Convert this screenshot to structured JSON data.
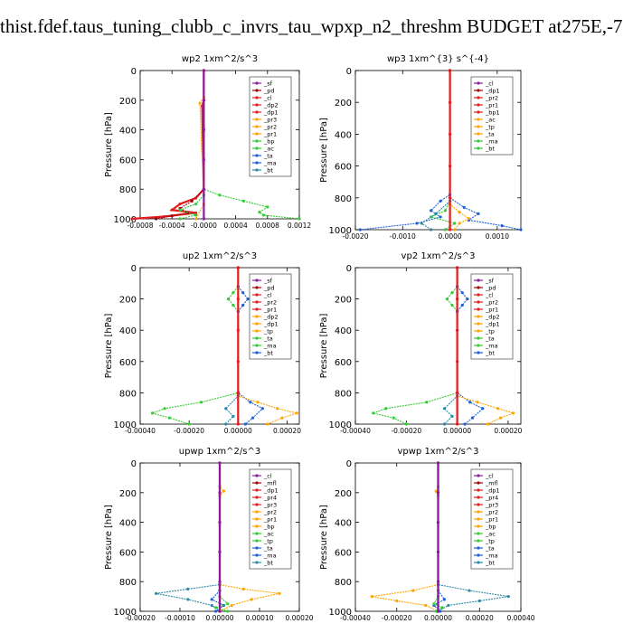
{
  "page": {
    "title": "thist.fdef.taus_tuning_clubb_c_invrs_tau_wpxp_n2_threshm  BUDGET at275E,-7"
  },
  "colors": {
    "red": "#e41a1c",
    "orange": "#ffa500",
    "green": "#33cc33",
    "blue": "#1f5fd6",
    "cyan": "#00cccc",
    "purple": "#8b1c9c",
    "darkred": "#a00000",
    "teal": "#2a8aa8"
  },
  "chart_data": [
    {
      "type": "line",
      "title": "wp2   1xm^2/s^3",
      "ylabel": "Pressure  [hPa]",
      "xlim": [
        -0.0008,
        0.0012
      ],
      "ylim": [
        1000,
        0
      ],
      "x_ticks": [
        "-0.0008",
        "-0.0004",
        "-0.0000",
        "0.0004",
        "0.0008",
        "0.0012"
      ],
      "y_ticks": [
        "0",
        "200",
        "400",
        "600",
        "800",
        "1000"
      ],
      "legend": [
        "_sf",
        "_pd",
        "_cl",
        "_dp2",
        "_dp1",
        "_pr3",
        "_pr2",
        "_pr1",
        "_bp",
        "_ac",
        "_ta",
        "_ma",
        "_bt"
      ],
      "legend_position": "top-right",
      "series": [
        {
          "name": "_cl",
          "color": "red",
          "x": [
            0,
            0,
            -2e-05,
            0,
            -0.0001,
            -0.0003,
            -0.0004,
            -0.0001,
            -0.0005,
            -0.0009
          ],
          "y": [
            0,
            200,
            240,
            800,
            860,
            900,
            940,
            960,
            985,
            1000
          ]
        },
        {
          "name": "_dp2",
          "color": "darkred",
          "x": [
            0,
            0,
            -0.00015,
            -0.0003,
            -0.0002,
            -0.0004,
            -0.0006
          ],
          "y": [
            0,
            800,
            880,
            930,
            960,
            980,
            1000
          ]
        },
        {
          "name": "_pr1",
          "color": "green",
          "x": [
            0,
            0,
            0.0002,
            0.0005,
            0.0008,
            0.0007,
            0.00075,
            0.0012
          ],
          "y": [
            0,
            800,
            840,
            880,
            920,
            955,
            975,
            1000
          ]
        },
        {
          "name": "_dp1",
          "color": "green",
          "x": [
            0,
            0,
            -0.0001,
            -0.0003,
            -0.0001,
            -0.0003
          ],
          "y": [
            0,
            840,
            900,
            940,
            975,
            1000
          ]
        },
        {
          "name": "_pr3",
          "color": "orange",
          "x": [
            0,
            0,
            -5e-05,
            0,
            -0.0001
          ],
          "y": [
            0,
            180,
            220,
            900,
            1000
          ]
        },
        {
          "name": "_bt",
          "color": "purple",
          "x": [
            0,
            0,
            0,
            0,
            0,
            0
          ],
          "y": [
            0,
            200,
            400,
            600,
            800,
            1000
          ]
        }
      ]
    },
    {
      "type": "line",
      "title": "wp3   1xm^{3} s^{-4}",
      "ylabel": "Pressure  [hPa]",
      "xlim": [
        -0.002,
        0.0015
      ],
      "ylim": [
        1000,
        0
      ],
      "x_ticks": [
        "-0.0020",
        "-0.0010",
        "0.0000",
        "0.0010"
      ],
      "y_ticks": [
        "0",
        "200",
        "400",
        "600",
        "800",
        "1000"
      ],
      "legend": [
        "_cl",
        "_dp1",
        "_pr2",
        "_pr1",
        "_bp1",
        "_ac",
        "_tp",
        "_ta",
        "_ma",
        "_bt"
      ],
      "legend_position": "top-right",
      "series": [
        {
          "name": "_tp",
          "color": "blue",
          "x": [
            0,
            0,
            -0.0002,
            -0.0004,
            -0.0002,
            -0.0007,
            -0.0019
          ],
          "y": [
            0,
            780,
            820,
            880,
            920,
            960,
            1000
          ]
        },
        {
          "name": "_ta",
          "color": "blue",
          "x": [
            0,
            0,
            0.0003,
            0.0006,
            0.0004,
            0.0011,
            0.0015
          ],
          "y": [
            0,
            800,
            860,
            900,
            940,
            975,
            1000
          ]
        },
        {
          "name": "_ac",
          "color": "green",
          "x": [
            0,
            0,
            -0.0001,
            -0.0004,
            0.0001,
            -0.0001
          ],
          "y": [
            0,
            820,
            880,
            920,
            960,
            1000
          ]
        },
        {
          "name": "_pr1",
          "color": "orange",
          "x": [
            0,
            0,
            0.0002,
            0.0004,
            0.0002,
            0.0001
          ],
          "y": [
            0,
            840,
            890,
            930,
            960,
            1000
          ]
        },
        {
          "name": "_ma",
          "color": "teal",
          "x": [
            0,
            0,
            -0.0003,
            -0.0006,
            -0.0004
          ],
          "y": [
            0,
            820,
            900,
            960,
            1000
          ]
        },
        {
          "name": "_bt",
          "color": "red",
          "x": [
            0,
            0,
            0,
            0,
            0,
            0
          ],
          "y": [
            0,
            200,
            400,
            600,
            800,
            1000
          ]
        }
      ]
    },
    {
      "type": "line",
      "title": "up2   1xm^2/s^3",
      "ylabel": "Pressure  [hPa]",
      "xlim": [
        -0.0004,
        0.00025
      ],
      "ylim": [
        1000,
        0
      ],
      "x_ticks": [
        "-0.00040",
        "-0.00020",
        "0.00000",
        "0.00020"
      ],
      "y_ticks": [
        "0",
        "200",
        "400",
        "600",
        "800",
        "1000"
      ],
      "legend": [
        "_sf",
        "_pd",
        "_cl",
        "_pr2",
        "_pr1",
        "_dp2",
        "_dp1",
        "_tp",
        "_ta",
        "_ma",
        "_bt"
      ],
      "legend_position": "top-right",
      "series": [
        {
          "name": "_pr1",
          "color": "green",
          "x": [
            0,
            0,
            -2e-05,
            -4e-05,
            -2e-05,
            0,
            0,
            -0.00015,
            -0.0003,
            -0.00035,
            -0.00028,
            -0.0002
          ],
          "y": [
            0,
            120,
            160,
            200,
            240,
            280,
            800,
            860,
            900,
            930,
            960,
            1000
          ]
        },
        {
          "name": "_tp",
          "color": "blue",
          "x": [
            0,
            0,
            2e-05,
            4e-05,
            2e-05,
            0,
            0,
            5e-05,
            0.0001,
            6e-05,
            3e-05
          ],
          "y": [
            0,
            120,
            160,
            200,
            240,
            280,
            800,
            860,
            900,
            960,
            1000
          ]
        },
        {
          "name": "_pr2",
          "color": "orange",
          "x": [
            0,
            0,
            8e-05,
            0.00016,
            0.00024,
            0.00018,
            0.00012
          ],
          "y": [
            0,
            820,
            860,
            900,
            930,
            960,
            1000
          ]
        },
        {
          "name": "_ta",
          "color": "teal",
          "x": [
            0,
            0,
            -5e-05,
            -2e-05,
            -5e-05
          ],
          "y": [
            0,
            820,
            900,
            950,
            1000
          ]
        },
        {
          "name": "_bt",
          "color": "red",
          "x": [
            0,
            0,
            0,
            0,
            0,
            0
          ],
          "y": [
            0,
            200,
            400,
            600,
            800,
            1000
          ]
        }
      ]
    },
    {
      "type": "line",
      "title": "vp2   1xm^2/s^3",
      "ylabel": "Pressure  [hPa]",
      "xlim": [
        -0.0004,
        0.00025
      ],
      "ylim": [
        1000,
        0
      ],
      "x_ticks": [
        "-0.00040",
        "-0.00020",
        "0.00000",
        "0.00020"
      ],
      "y_ticks": [
        "0",
        "200",
        "400",
        "600",
        "800",
        "1000"
      ],
      "legend": [
        "_sf",
        "_pd",
        "_cl",
        "_pr2",
        "_pr1",
        "_dp2",
        "_dp1",
        "_tp",
        "_ta",
        "_ma",
        "_bt"
      ],
      "legend_position": "top-right",
      "series": [
        {
          "name": "_pr1",
          "color": "green",
          "x": [
            0,
            0,
            -2e-05,
            -4e-05,
            -2e-05,
            0,
            0,
            -0.00012,
            -0.00028,
            -0.00033,
            -0.00025,
            -0.0002
          ],
          "y": [
            0,
            120,
            160,
            200,
            240,
            280,
            800,
            860,
            900,
            930,
            960,
            1000
          ]
        },
        {
          "name": "_tp",
          "color": "blue",
          "x": [
            0,
            0,
            2e-05,
            4e-05,
            2e-05,
            0,
            0,
            5e-05,
            0.0001,
            6e-05,
            3e-05
          ],
          "y": [
            0,
            120,
            160,
            200,
            240,
            280,
            800,
            860,
            900,
            960,
            1000
          ]
        },
        {
          "name": "_pr2",
          "color": "orange",
          "x": [
            0,
            0,
            8e-05,
            0.00016,
            0.00022,
            0.00017,
            0.00012
          ],
          "y": [
            0,
            820,
            860,
            900,
            930,
            960,
            1000
          ]
        },
        {
          "name": "_ta",
          "color": "teal",
          "x": [
            0,
            0,
            -5e-05,
            -2e-05,
            -5e-05
          ],
          "y": [
            0,
            820,
            900,
            950,
            1000
          ]
        },
        {
          "name": "_bt",
          "color": "red",
          "x": [
            0,
            0,
            0,
            0,
            0,
            0
          ],
          "y": [
            0,
            200,
            400,
            600,
            800,
            1000
          ]
        }
      ]
    },
    {
      "type": "line",
      "title": "upwp   1xm^2/s^3",
      "ylabel": "Pressure  [hPa]",
      "xlim": [
        -0.0002,
        0.0002
      ],
      "ylim": [
        1000,
        0
      ],
      "x_ticks": [
        "-0.00020",
        "-0.00010",
        "0.00000",
        "0.00010",
        "0.00020"
      ],
      "y_ticks": [
        "0",
        "200",
        "400",
        "600",
        "800",
        "1000"
      ],
      "legend": [
        "_cl",
        "_mfl",
        "_dp1",
        "_pr4",
        "_pr3",
        "_pr2",
        "_pr1",
        "_bp",
        "_ac",
        "_tp",
        "_ta",
        "_ma",
        "_bt"
      ],
      "legend_position": "top-right",
      "series": [
        {
          "name": "_pr1",
          "color": "orange",
          "x": [
            0,
            0,
            1e-05,
            0,
            0,
            6e-05,
            0.00015,
            8e-05,
            3e-05,
            0
          ],
          "y": [
            0,
            160,
            190,
            220,
            820,
            850,
            880,
            920,
            960,
            1000
          ]
        },
        {
          "name": "_tp",
          "color": "teal",
          "x": [
            0,
            0,
            -8e-05,
            -0.00016,
            -8e-05,
            -2e-05,
            0
          ],
          "y": [
            0,
            820,
            850,
            880,
            920,
            960,
            1000
          ]
        },
        {
          "name": "_pr2",
          "color": "blue",
          "x": [
            0,
            0,
            -2e-05,
            1e-05,
            -1e-05
          ],
          "y": [
            0,
            860,
            920,
            960,
            1000
          ]
        },
        {
          "name": "_ac",
          "color": "green",
          "x": [
            0,
            0,
            2e-05,
            -1e-05,
            2e-05
          ],
          "y": [
            0,
            900,
            950,
            975,
            1000
          ]
        },
        {
          "name": "_bt",
          "color": "red",
          "x": [
            0,
            0,
            0,
            0,
            0,
            0
          ],
          "y": [
            0,
            200,
            400,
            600,
            800,
            1000
          ]
        },
        {
          "name": "_cl",
          "color": "purple",
          "x": [
            0,
            0,
            0,
            0,
            0,
            0
          ],
          "y": [
            0,
            200,
            400,
            600,
            800,
            1000
          ]
        }
      ]
    },
    {
      "type": "line",
      "title": "vpwp   1xm^2/s^3",
      "ylabel": "Pressure  [hPa]",
      "xlim": [
        -0.0004,
        0.0004
      ],
      "ylim": [
        1000,
        0
      ],
      "x_ticks": [
        "-0.00040",
        "-0.00020",
        "0.00000",
        "0.00020",
        "0.00040"
      ],
      "y_ticks": [
        "0",
        "200",
        "400",
        "600",
        "800",
        "1000"
      ],
      "legend": [
        "_cl",
        "_mfl",
        "_dp1",
        "_pr4",
        "_pr3",
        "_pr2",
        "_pr1",
        "_bp",
        "_ac",
        "_tp",
        "_ta",
        "_ma",
        "_bt"
      ],
      "legend_position": "top-right",
      "series": [
        {
          "name": "_pr1",
          "color": "orange",
          "x": [
            0,
            0,
            -1e-05,
            0,
            0,
            -0.00012,
            -0.00032,
            -0.0002,
            -6e-05,
            0
          ],
          "y": [
            0,
            160,
            190,
            220,
            820,
            860,
            900,
            930,
            960,
            1000
          ]
        },
        {
          "name": "_tp",
          "color": "teal",
          "x": [
            0,
            0,
            0.00015,
            0.00034,
            0.0002,
            5e-05,
            0
          ],
          "y": [
            0,
            820,
            860,
            900,
            930,
            960,
            1000
          ]
        },
        {
          "name": "_pr2",
          "color": "blue",
          "x": [
            0,
            0,
            3e-05,
            -2e-05,
            1e-05
          ],
          "y": [
            0,
            860,
            920,
            960,
            1000
          ]
        },
        {
          "name": "_ac",
          "color": "green",
          "x": [
            0,
            0,
            -2e-05,
            2e-05,
            -1e-05
          ],
          "y": [
            0,
            900,
            950,
            975,
            1000
          ]
        },
        {
          "name": "_bt",
          "color": "red",
          "x": [
            0,
            0,
            0,
            0,
            0,
            0
          ],
          "y": [
            0,
            200,
            400,
            600,
            800,
            1000
          ]
        },
        {
          "name": "_cl",
          "color": "purple",
          "x": [
            0,
            0,
            0,
            0,
            0,
            0
          ],
          "y": [
            0,
            200,
            400,
            600,
            800,
            1000
          ]
        }
      ]
    }
  ]
}
